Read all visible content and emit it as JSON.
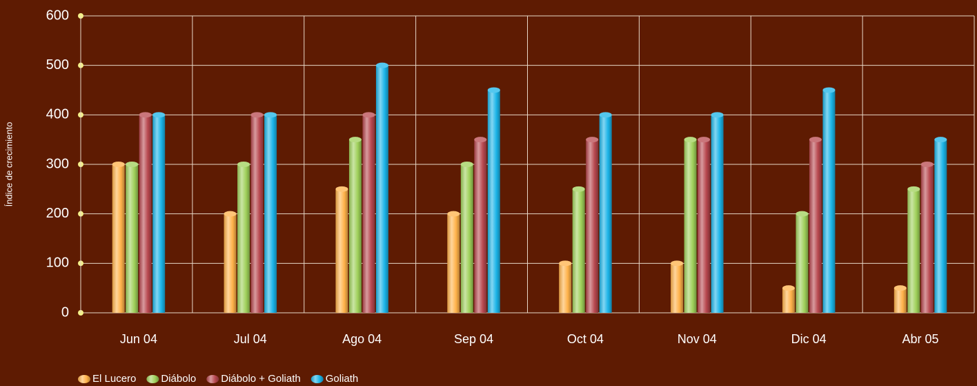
{
  "chart_data": {
    "type": "bar",
    "y_label": "Índice de crecimiento",
    "categories": [
      "Jun 04",
      "Jul 04",
      "Ago 04",
      "Sep 04",
      "Oct 04",
      "Nov 04",
      "Dic 04",
      "Abr 05"
    ],
    "series": [
      {
        "name": "El Lucero",
        "color": "#ffb24a",
        "values": [
          300,
          200,
          250,
          200,
          100,
          100,
          50,
          50
        ]
      },
      {
        "name": "Diábolo",
        "color": "#9fd05a",
        "values": [
          300,
          300,
          350,
          300,
          250,
          350,
          200,
          250
        ]
      },
      {
        "name": "Diábolo + Goliath",
        "color": "#b8484f",
        "values": [
          400,
          400,
          400,
          350,
          350,
          350,
          350,
          300
        ]
      },
      {
        "name": "Goliath",
        "color": "#1bb4e8",
        "values": [
          400,
          400,
          500,
          450,
          400,
          400,
          450,
          350
        ]
      }
    ],
    "ylim": [
      0,
      600
    ],
    "yticks": [
      0,
      100,
      200,
      300,
      400,
      500,
      600
    ],
    "grid": true,
    "legend": "bottom-left"
  }
}
